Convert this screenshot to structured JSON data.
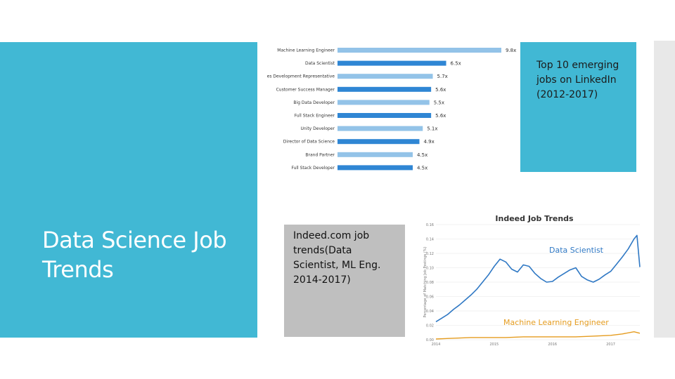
{
  "slide": {
    "title": "Data Science Job Trends",
    "top_caption": "Top 10 emerging jobs on LinkedIn (2012-2017)",
    "mid_caption": "Indeed.com job trends(Data Scientist, ML Eng. 2014-2017)"
  },
  "colors": {
    "accent": "#41b8d4",
    "caption_gray": "#bfbfbf",
    "bar_dark": "#2f86d4",
    "bar_light": "#93c3e8",
    "ds_line": "#2f78c4",
    "ml_line": "#e59c1f"
  },
  "chart_data": [
    {
      "type": "bar",
      "orientation": "horizontal",
      "categories": [
        "Machine Learning Engineer",
        "Data Scientist",
        "Sales Development Representative",
        "Customer Success Manager",
        "Big Data Developer",
        "Full Stack Engineer",
        "Unity Developer",
        "Director of Data Science",
        "Brand Partner",
        "Full Stack Developer"
      ],
      "values": [
        9.8,
        6.5,
        5.7,
        5.6,
        5.5,
        5.6,
        5.1,
        4.9,
        4.5,
        4.5
      ],
      "value_labels": [
        "9.8x",
        "6.5x",
        "5.7x",
        "5.6x",
        "5.5x",
        "5.6x",
        "5.1x",
        "4.9x",
        "4.5x",
        "4.5x"
      ],
      "shade": [
        "light",
        "dark",
        "light",
        "dark",
        "light",
        "dark",
        "light",
        "dark",
        "light",
        "dark"
      ],
      "xlim": [
        0,
        9.8
      ]
    },
    {
      "type": "line",
      "title": "Indeed Job Trends",
      "ylabel": "Percentage of Matching Job Postings (%)",
      "y_ticks": [
        "0.00",
        "0.02",
        "0.04",
        "0.06",
        "0.08",
        "0.10",
        "0.12",
        "0.14",
        "0.16"
      ],
      "x_ticks": [
        "2014",
        "2015",
        "2016",
        "2017"
      ],
      "ylim": [
        0,
        0.16
      ],
      "xlim": [
        2014.0,
        2017.5
      ],
      "series": [
        {
          "name": "Data Scientist",
          "x": [
            2014.0,
            2014.1,
            2014.2,
            2014.3,
            2014.4,
            2014.5,
            2014.6,
            2014.7,
            2014.8,
            2014.9,
            2015.0,
            2015.1,
            2015.2,
            2015.3,
            2015.4,
            2015.5,
            2015.6,
            2015.7,
            2015.8,
            2015.9,
            2016.0,
            2016.1,
            2016.2,
            2016.3,
            2016.4,
            2016.5,
            2016.6,
            2016.7,
            2016.8,
            2016.9,
            2017.0,
            2017.1,
            2017.2,
            2017.3,
            2017.4,
            2017.45,
            2017.5
          ],
          "y": [
            0.025,
            0.03,
            0.035,
            0.042,
            0.048,
            0.055,
            0.062,
            0.07,
            0.08,
            0.09,
            0.102,
            0.112,
            0.108,
            0.098,
            0.094,
            0.104,
            0.102,
            0.092,
            0.085,
            0.08,
            0.081,
            0.087,
            0.092,
            0.097,
            0.1,
            0.088,
            0.083,
            0.08,
            0.084,
            0.09,
            0.095,
            0.105,
            0.115,
            0.126,
            0.14,
            0.145,
            0.101
          ]
        },
        {
          "name": "Machine Learning Engineer",
          "x": [
            2014.0,
            2014.3,
            2014.6,
            2014.9,
            2015.2,
            2015.5,
            2015.8,
            2016.1,
            2016.4,
            2016.7,
            2017.0,
            2017.2,
            2017.4,
            2017.5
          ],
          "y": [
            0.001,
            0.002,
            0.003,
            0.003,
            0.003,
            0.004,
            0.004,
            0.004,
            0.004,
            0.005,
            0.006,
            0.008,
            0.011,
            0.009
          ]
        }
      ]
    }
  ]
}
